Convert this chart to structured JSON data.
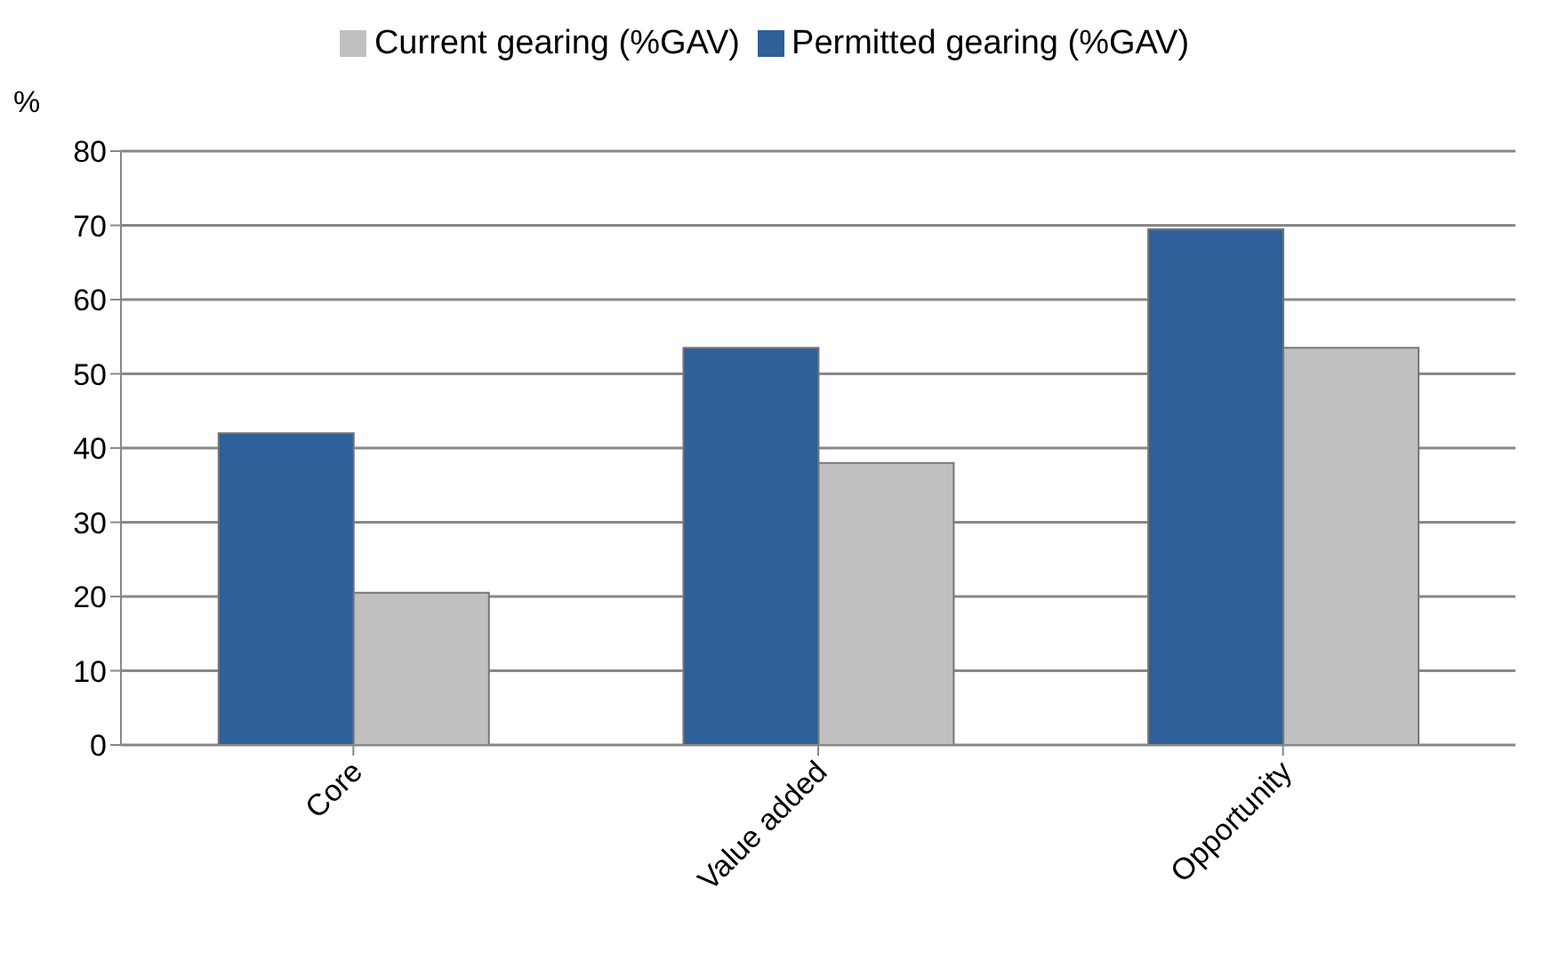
{
  "chart_data": {
    "type": "bar",
    "ylabel": "%",
    "categories": [
      "Core",
      "Value added",
      "Opportunity"
    ],
    "series": [
      {
        "name": "Permitted gearing (%GAV)",
        "color": "#2e6099",
        "values": [
          42,
          53.5,
          69.5
        ]
      },
      {
        "name": "Current gearing (%GAV)",
        "color": "#c0c0c0",
        "values": [
          20.5,
          38,
          53.5
        ]
      }
    ],
    "ylim": [
      0,
      80
    ],
    "yticks": [
      0,
      10,
      20,
      30,
      40,
      50,
      60,
      70,
      80
    ],
    "grid": "y",
    "legend": "top"
  }
}
